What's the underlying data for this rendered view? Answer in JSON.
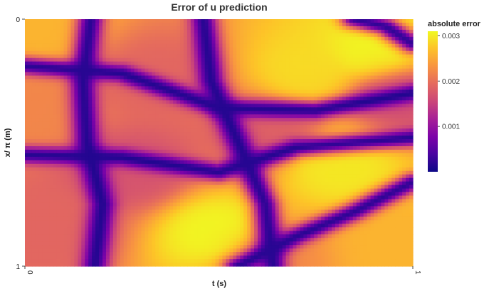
{
  "chart_data": {
    "type": "heatmap",
    "title": "Error of u prediction",
    "xlabel": "t (s)",
    "ylabel": "x/ π (m)",
    "x_range": [
      0,
      1
    ],
    "y_range": [
      0,
      1
    ],
    "x_ticks": [
      "0",
      "1"
    ],
    "y_ticks": [
      "0",
      "1"
    ],
    "y_inverted": true,
    "colorscale": "plasma",
    "legend": {
      "title": "absolute error",
      "placement": "right",
      "range": [
        0,
        0.0031
      ],
      "ticks": [
        "0.001",
        "0.002",
        "0.003"
      ],
      "tick_values": [
        0.001,
        0.002,
        0.003
      ]
    },
    "grid_size": [
      110,
      70
    ],
    "peaks": [
      {
        "t": 0.02,
        "x": 0.04,
        "value": 0.0026
      },
      {
        "t": 0.04,
        "x": 0.38,
        "value": 0.0022
      },
      {
        "t": 0.08,
        "x": 0.84,
        "value": 0.0019
      },
      {
        "t": 0.34,
        "x": 0.25,
        "value": 0.0019
      },
      {
        "t": 0.27,
        "x": 0.61,
        "value": 0.0017
      },
      {
        "t": 0.5,
        "x": 0.87,
        "value": 0.0031
      },
      {
        "t": 0.73,
        "x": 0.22,
        "value": 0.0029
      },
      {
        "t": 0.9,
        "x": 0.15,
        "value": 0.0031
      },
      {
        "t": 0.8,
        "x": 0.58,
        "value": 0.003
      },
      {
        "t": 0.64,
        "x": 0.45,
        "value": 0.0018
      },
      {
        "t": 0.97,
        "x": 0.94,
        "value": 0.0026
      },
      {
        "t": 0.62,
        "x": 0.96,
        "value": 0.0022
      },
      {
        "t": 0.95,
        "x": 0.3,
        "value": 0.0016
      }
    ],
    "zero_lines": [
      {
        "kind": "vertical",
        "points": [
          [
            0.17,
            0.0
          ],
          [
            0.15,
            0.25
          ],
          [
            0.16,
            0.5
          ],
          [
            0.2,
            0.75
          ],
          [
            0.18,
            1.0
          ]
        ]
      },
      {
        "kind": "vertical",
        "points": [
          [
            0.46,
            0.0
          ],
          [
            0.48,
            0.25
          ],
          [
            0.55,
            0.5
          ],
          [
            0.62,
            0.75
          ],
          [
            0.64,
            1.0
          ]
        ]
      },
      {
        "kind": "horizontal",
        "points": [
          [
            0.0,
            0.19
          ],
          [
            0.25,
            0.22
          ],
          [
            0.5,
            0.36
          ],
          [
            0.75,
            0.37
          ],
          [
            1.0,
            0.3
          ]
        ]
      },
      {
        "kind": "horizontal",
        "points": [
          [
            0.0,
            0.55
          ],
          [
            0.25,
            0.56
          ],
          [
            0.5,
            0.62
          ],
          [
            0.7,
            0.52
          ],
          [
            1.0,
            0.48
          ]
        ]
      },
      {
        "kind": "horizontal",
        "points": [
          [
            0.55,
            1.0
          ],
          [
            0.7,
            0.88
          ],
          [
            0.85,
            0.78
          ],
          [
            1.0,
            0.66
          ]
        ]
      },
      {
        "kind": "horizontal",
        "points": [
          [
            0.85,
            0.0
          ],
          [
            0.93,
            0.03
          ],
          [
            1.0,
            0.1
          ]
        ]
      }
    ]
  }
}
